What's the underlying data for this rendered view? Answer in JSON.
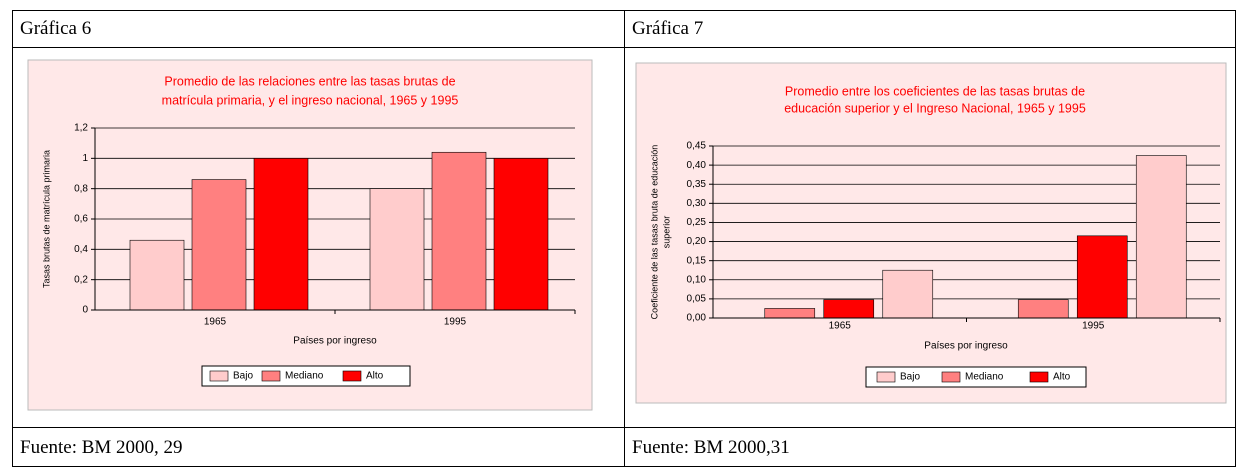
{
  "table": {
    "headers": [
      "Gráfica 6",
      "Gráfica 7"
    ],
    "footers": [
      "Fuente: BM 2000, 29",
      "Fuente: BM 2000,31"
    ]
  },
  "chart_data": [
    {
      "type": "bar",
      "title": [
        "Promedio de las relaciones entre las tasas brutas de",
        "matrícula primaria, y el ingreso nacional, 1965 y 1995"
      ],
      "y_label": [
        "Tasas brutas de matrícula primaria"
      ],
      "x_label": "Países por ingreso",
      "categories": [
        "1965",
        "1995"
      ],
      "series": [
        {
          "name": "Bajo",
          "color": "#ffcccc",
          "values": [
            0.46,
            0.8
          ]
        },
        {
          "name": "Mediano",
          "color": "#ff8080",
          "values": [
            0.86,
            1.04
          ]
        },
        {
          "name": "Alto",
          "color": "#ff0000",
          "values": [
            1.0,
            1.0
          ]
        }
      ],
      "ylim": [
        0,
        1.2
      ],
      "yticks": [
        0,
        {
          "value": 0.2,
          "label": "0,2"
        },
        {
          "value": 0.4,
          "label": "0,4"
        },
        {
          "value": 0.6,
          "label": "0,6"
        },
        {
          "value": 0.8,
          "label": "0,8"
        },
        1,
        {
          "value": 1.2,
          "label": "1,2"
        }
      ],
      "grid": true,
      "legend": "bottom"
    },
    {
      "type": "bar",
      "title": [
        "Promedio entre los coeficientes de las tasas brutas de",
        "educación superior y el Ingreso Nacional, 1965 y 1995"
      ],
      "y_label": [
        "Coeficiente de las tasas bruta de educación",
        "superior"
      ],
      "x_label": "Países por ingreso",
      "categories": [
        "1965",
        "1995"
      ],
      "series": [
        {
          "name": "Bajo",
          "color": "#ffcccc",
          "values": [
            0.125,
            0.425
          ]
        },
        {
          "name": "Mediano",
          "color": "#ff8080",
          "values": [
            0.025,
            0.048
          ]
        },
        {
          "name": "Alto",
          "color": "#ff0000",
          "values": [
            0.048,
            0.215
          ]
        }
      ],
      "ylim": [
        0,
        0.45
      ],
      "yticks": [
        {
          "value": 0,
          "label": "0,00"
        },
        {
          "value": 0.05,
          "label": "0,05"
        },
        {
          "value": 0.1,
          "label": "0,10"
        },
        {
          "value": 0.15,
          "label": "0,15"
        },
        {
          "value": 0.2,
          "label": "0,20"
        },
        {
          "value": 0.25,
          "label": "0,25"
        },
        {
          "value": 0.3,
          "label": "0,30"
        },
        {
          "value": 0.35,
          "label": "0,35"
        },
        {
          "value": 0.4,
          "label": "0,40"
        },
        {
          "value": 0.45,
          "label": "0,45"
        }
      ],
      "grid": true,
      "legend": "bottom"
    }
  ]
}
